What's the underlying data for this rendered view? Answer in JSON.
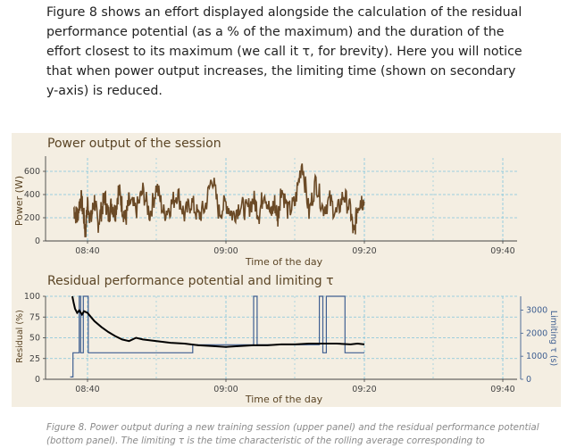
{
  "article": {
    "paragraph": "Figure 8 shows an effort displayed alongside the calculation of the residual performance potential (as a % of the maximum) and the duration of the effort closest to its maximum (we call it τ, for brevity). Here you will notice that when power output increases, the limiting time (shown on secondary y-axis) is reduced.",
    "caption": "Figure 8. Power output during a new training session (upper panel) and the residual performance potential (bottom panel). The limiting τ is the time characteristic of the rolling average corresponding to"
  },
  "colors": {
    "figure_bg": "#f4eee2",
    "power_line": "#6b4a26",
    "residual_line": "#000000",
    "tau_line": "#3f5f91",
    "grid": "#7fc4dc",
    "title": "#5b4525"
  },
  "chart_data": [
    {
      "type": "line",
      "title": "Power output of the session",
      "xlabel": "Time of the day",
      "ylabel": "Power (W)",
      "xticks": [
        "08:40",
        "09:00",
        "09:20",
        "09:40"
      ],
      "yticks": [
        0,
        200,
        400,
        600
      ],
      "xlim_minutes": [
        -2.5,
        42
      ],
      "ylim": [
        0,
        700
      ],
      "grid": true,
      "series": [
        {
          "x_minutes": [
            -2.0,
            -1.5,
            -1.0,
            -0.6,
            -0.3,
            0.0,
            0.5,
            1.0,
            1.5,
            2.0,
            2.5,
            3.0,
            3.5,
            4.0,
            4.5,
            5.0,
            5.5,
            6.0,
            7.0,
            8.0,
            9.0,
            10.0,
            11.0,
            12.0,
            13.0,
            14.0,
            15.0,
            16.0,
            17.0,
            18.0,
            19.0,
            20.0,
            21.0,
            22.0,
            23.0,
            24.0,
            24.8,
            25.5,
            26.5,
            27.0,
            27.5,
            28.0,
            29.0,
            30.0,
            31.0,
            32.0,
            33.0,
            34.0,
            35.0,
            36.0,
            37.0,
            38.0,
            38.5,
            39.0,
            39.5,
            40.0
          ],
          "y_watts": [
            280,
            200,
            380,
            250,
            60,
            330,
            180,
            350,
            150,
            260,
            380,
            220,
            320,
            240,
            450,
            300,
            180,
            340,
            260,
            430,
            230,
            470,
            240,
            300,
            420,
            220,
            340,
            210,
            290,
            560,
            240,
            330,
            220,
            310,
            260,
            360,
            230,
            440,
            220,
            340,
            200,
            460,
            250,
            330,
            690,
            240,
            520,
            280,
            350,
            230,
            400,
            260,
            40,
            300,
            360,
            330
          ]
        }
      ]
    },
    {
      "type": "line",
      "title": "Residual performance potential and limiting τ",
      "xlabel": "Time of the day",
      "ylabel": "Residual (%)",
      "y2label": "Limiting τ (s)",
      "xticks": [
        "08:40",
        "09:00",
        "09:20",
        "09:40"
      ],
      "yticks": [
        0,
        25,
        50,
        75,
        100
      ],
      "y2ticks": [
        0,
        1000,
        2000,
        3000
      ],
      "xlim_minutes": [
        -2.5,
        42
      ],
      "ylim": [
        0,
        100
      ],
      "y2lim": [
        0,
        3600
      ],
      "grid": true,
      "series": [
        {
          "name": "Residual (%)",
          "x_minutes": [
            -2.2,
            -2.0,
            -1.8,
            -1.5,
            -1.2,
            -0.8,
            -0.5,
            0.0,
            0.5,
            1.0,
            2.0,
            3.0,
            4.0,
            5.0,
            6.0,
            7.0,
            8.0,
            10.0,
            12.0,
            14.0,
            16.0,
            18.0,
            20.0,
            22.0,
            24.0,
            26.0,
            28.0,
            30.0,
            32.0,
            34.0,
            36.0,
            38.0,
            39.0,
            40.0
          ],
          "values": [
            100,
            92,
            85,
            80,
            83,
            78,
            82,
            80,
            75,
            70,
            63,
            57,
            52,
            48,
            46,
            50,
            48,
            46,
            44,
            43,
            41,
            40,
            39,
            40,
            41,
            41,
            42,
            42,
            43,
            43,
            43,
            42,
            43,
            42
          ]
        },
        {
          "name": "Limiting τ (s)",
          "x_minutes": [
            -2.5,
            -2.1,
            -2.1,
            -1.2,
            -1.2,
            -1.0,
            -1.0,
            -0.6,
            -0.6,
            -0.1,
            -0.1,
            0.1,
            0.1,
            15.2,
            15.2,
            15.5,
            15.5,
            24.0,
            24.0,
            24.5,
            24.5,
            25.0,
            25.0,
            33.5,
            33.5,
            34.0,
            34.0,
            34.5,
            34.5,
            37.2,
            37.2,
            37.6,
            37.6,
            40.0
          ],
          "values": [
            100,
            100,
            1150,
            1150,
            3600,
            3600,
            1150,
            1150,
            3600,
            3600,
            3600,
            3600,
            1150,
            1150,
            1500,
            1500,
            1500,
            1500,
            3600,
            3600,
            1500,
            1500,
            1500,
            1500,
            3600,
            3600,
            1150,
            1150,
            3600,
            3600,
            1150,
            1150,
            1150,
            1150
          ]
        }
      ]
    }
  ]
}
